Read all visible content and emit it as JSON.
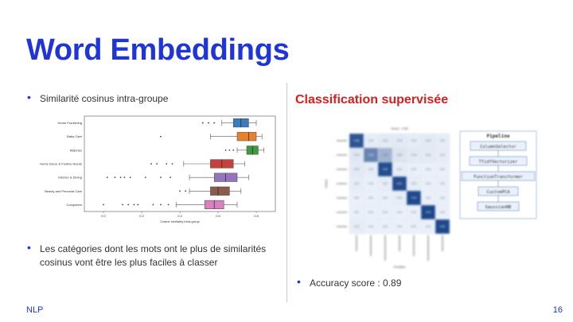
{
  "slide": {
    "title": "Word Embeddings",
    "left_bullet_1": "Similarité cosinus intra-groupe",
    "left_bullet_2": "Les catégories dont les mots ont le plus de similarités cosinus vont être les plus faciles à classer",
    "right_subtitle": "Classification supervisée",
    "right_bullet": "Accuracy score : 0.89",
    "footer_left": "NLP",
    "page_number": "16",
    "bullet_glyph": "•"
  },
  "colors": {
    "title": "#1f35d9",
    "subtitle": "#d42020",
    "divider": "#c8c8c8"
  },
  "chart_data": [
    {
      "type": "boxplot",
      "xlabel": "Cosine similarity intra-group",
      "xticks": [
        "0.0",
        "0.2",
        "0.4",
        "0.6",
        "0.8"
      ],
      "xlim": [
        -0.1,
        0.9
      ],
      "series": [
        {
          "category": "Home Furnishing",
          "q1": 0.68,
          "median": 0.72,
          "q3": 0.76,
          "lo": 0.62,
          "hi": 0.8,
          "color": "#3a7dbf",
          "outliers": [
            0.52,
            0.55,
            0.58
          ]
        },
        {
          "category": "Baby Care",
          "q1": 0.7,
          "median": 0.76,
          "q3": 0.8,
          "lo": 0.56,
          "hi": 0.83,
          "color": "#e8812a",
          "outliers": [
            0.3
          ]
        },
        {
          "category": "Watches",
          "q1": 0.75,
          "median": 0.78,
          "q3": 0.81,
          "lo": 0.7,
          "hi": 0.84,
          "color": "#3f9a3f",
          "outliers": [
            0.64,
            0.66,
            0.68
          ]
        },
        {
          "category": "Home Decor & Festive Needs",
          "q1": 0.56,
          "median": 0.62,
          "q3": 0.68,
          "lo": 0.42,
          "hi": 0.74,
          "color": "#c8403a",
          "outliers": [
            0.25,
            0.28,
            0.33,
            0.36
          ]
        },
        {
          "category": "Kitchen & Dining",
          "q1": 0.58,
          "median": 0.64,
          "q3": 0.7,
          "lo": 0.45,
          "hi": 0.76,
          "color": "#9474bd",
          "outliers": [
            0.02,
            0.06,
            0.09,
            0.11,
            0.14,
            0.22,
            0.3,
            0.35
          ]
        },
        {
          "category": "Beauty and Personal Care",
          "q1": 0.56,
          "median": 0.6,
          "q3": 0.66,
          "lo": 0.45,
          "hi": 0.72,
          "color": "#8c5d4e",
          "outliers": [
            0.4,
            0.43
          ]
        },
        {
          "category": "Computers",
          "q1": 0.53,
          "median": 0.58,
          "q3": 0.63,
          "lo": 0.38,
          "hi": 0.7,
          "color": "#db7fc3",
          "outliers": [
            0.0,
            0.1,
            0.13,
            0.16,
            0.18,
            0.26,
            0.3,
            0.34
          ]
        }
      ]
    },
    {
      "type": "heatmap",
      "title": "Score : 0.89",
      "ylabel": "Vraies",
      "xlabel": "Prédites",
      "rows": 7,
      "cols": 7,
      "values": [
        [
          0.85,
          0.02,
          0.03,
          0.03,
          0.02,
          0.03,
          0.02
        ],
        [
          0.04,
          0.55,
          0.28,
          0.05,
          0.03,
          0.03,
          0.02
        ],
        [
          0.03,
          0.02,
          0.9,
          0.02,
          0.01,
          0.01,
          0.01
        ],
        [
          0.02,
          0.01,
          0.02,
          0.91,
          0.02,
          0.01,
          0.01
        ],
        [
          0.01,
          0.01,
          0.01,
          0.02,
          0.93,
          0.01,
          0.01
        ],
        [
          0.01,
          0.01,
          0.01,
          0.01,
          0.01,
          0.94,
          0.01
        ],
        [
          0.02,
          0.01,
          0.01,
          0.01,
          0.01,
          0.01,
          0.93
        ]
      ]
    }
  ],
  "pipeline": {
    "title": "Pipeline",
    "steps": [
      "ColumnSelector",
      "TfidfVectorizer",
      "FunctionTransformer",
      "CustomPCA",
      "GaussianNB"
    ]
  }
}
